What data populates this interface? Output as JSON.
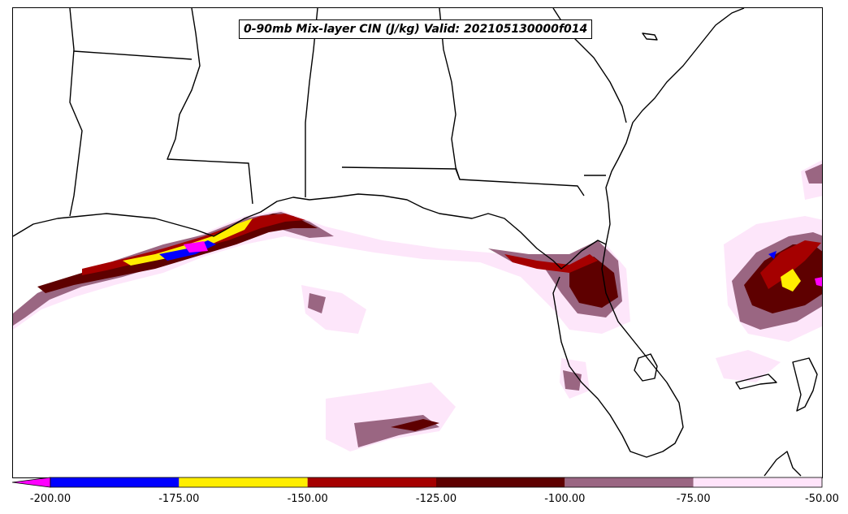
{
  "map": {
    "title": "0-90mb Mix-layer CIN (J/kg) Valid: 202105130000f014",
    "colors": {
      "land_line": "#000000",
      "background": "#ffffff"
    }
  },
  "colorbar": {
    "extend": "min",
    "under_color": "#ff00ff",
    "bins": [
      {
        "from": -200,
        "to": -175,
        "color": "#0000ff"
      },
      {
        "from": -175,
        "to": -150,
        "color": "#ffee00"
      },
      {
        "from": -150,
        "to": -125,
        "color": "#a50000"
      },
      {
        "from": -125,
        "to": -100,
        "color": "#5e0000"
      },
      {
        "from": -100,
        "to": -75,
        "color": "#9a6682"
      },
      {
        "from": -75,
        "to": -50,
        "color": "#ffe4fa"
      }
    ],
    "ticks": [
      "-200.00",
      "-175.00",
      "-150.00",
      "-125.00",
      "-100.00",
      "-75.00",
      "-50.00"
    ]
  }
}
